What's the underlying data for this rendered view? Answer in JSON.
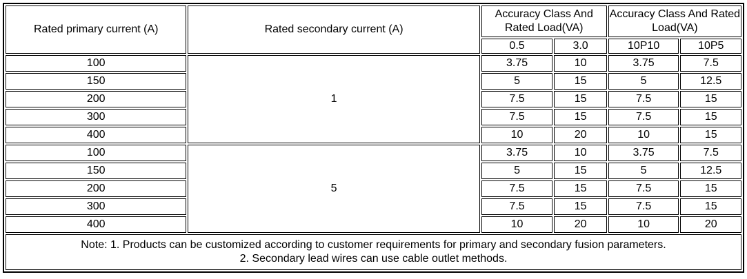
{
  "table": {
    "headers": {
      "primary": "Rated primary current (A)",
      "secondary": "Rated secondary current (A)",
      "accuracy_group_1": "Accuracy Class And Rated Load(VA)",
      "accuracy_group_2": "Accuracy Class And Rated Load(VA)",
      "sub": [
        "0.5",
        "3.0",
        "10P10",
        "10P5"
      ]
    },
    "groups": [
      {
        "secondary_current": "1",
        "rows": [
          {
            "primary": "100",
            "values": [
              "3.75",
              "10",
              "3.75",
              "7.5"
            ]
          },
          {
            "primary": "150",
            "values": [
              "5",
              "15",
              "5",
              "12.5"
            ]
          },
          {
            "primary": "200",
            "values": [
              "7.5",
              "15",
              "7.5",
              "15"
            ]
          },
          {
            "primary": "300",
            "values": [
              "7.5",
              "15",
              "7.5",
              "15"
            ]
          },
          {
            "primary": "400",
            "values": [
              "10",
              "20",
              "10",
              "15"
            ]
          }
        ]
      },
      {
        "secondary_current": "5",
        "rows": [
          {
            "primary": "100",
            "values": [
              "3.75",
              "10",
              "3.75",
              "7.5"
            ]
          },
          {
            "primary": "150",
            "values": [
              "5",
              "15",
              "5",
              "12.5"
            ]
          },
          {
            "primary": "200",
            "values": [
              "7.5",
              "15",
              "7.5",
              "15"
            ]
          },
          {
            "primary": "300",
            "values": [
              "7.5",
              "15",
              "7.5",
              "15"
            ]
          },
          {
            "primary": "400",
            "values": [
              "10",
              "20",
              "10",
              "20"
            ]
          }
        ]
      }
    ],
    "note_lines": [
      "Note: 1. Products can be customized according to customer requirements for primary and secondary fusion parameters.",
      "2. Secondary lead wires can use cable outlet methods."
    ]
  },
  "colors": {
    "border": "#000000",
    "text": "#000000",
    "background": "#ffffff"
  }
}
